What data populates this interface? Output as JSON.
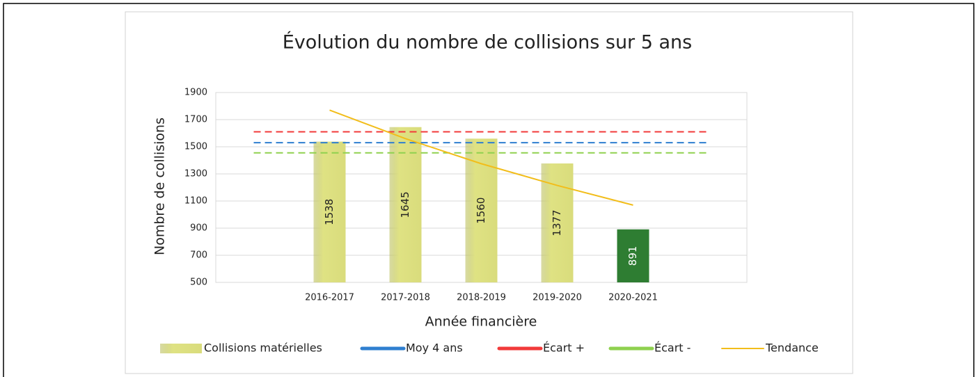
{
  "chart_data": {
    "type": "bar",
    "title": "Évolution du nombre de collisions sur 5 ans",
    "x_label": "Année financière",
    "y_label": "Nombre de collisions",
    "categories": [
      null,
      "2016-2017",
      "2017-2018",
      "2018-2019",
      "2019-2020",
      "2020-2021",
      null
    ],
    "ylim": [
      500,
      1900
    ],
    "yticks": [
      500,
      700,
      900,
      1100,
      1300,
      1500,
      1700,
      1900
    ],
    "grid": true,
    "legend": "bottom",
    "series": [
      {
        "name": "Collisions matérielles",
        "type": "bar",
        "color": "#d9dc7c",
        "colors": [
          null,
          "#d9dc7c",
          "#d9dc7c",
          "#d9dc7c",
          "#d9dc7c",
          "#2e7d32",
          null
        ],
        "values": [
          null,
          1538,
          1645,
          1560,
          1377,
          891,
          null
        ]
      },
      {
        "name": "Moy 4 ans",
        "type": "line",
        "color": "#2f7fd0",
        "dash": true,
        "values": [
          1530,
          1530,
          1530,
          1530,
          1530,
          1530,
          1530
        ]
      },
      {
        "name": "Écart +",
        "type": "line",
        "color": "#f23a3a",
        "dash": true,
        "values": [
          1610,
          1610,
          1610,
          1610,
          1610,
          1610,
          1610
        ]
      },
      {
        "name": "Écart -",
        "type": "line",
        "color": "#8fd14f",
        "dash": true,
        "values": [
          1455,
          1455,
          1455,
          1455,
          1455,
          1455,
          1455
        ]
      },
      {
        "name": "Tendance",
        "type": "line",
        "color": "#f2bd1a",
        "dash": false,
        "values": [
          null,
          1770,
          1560,
          1375,
          1215,
          1070,
          null
        ]
      }
    ]
  }
}
